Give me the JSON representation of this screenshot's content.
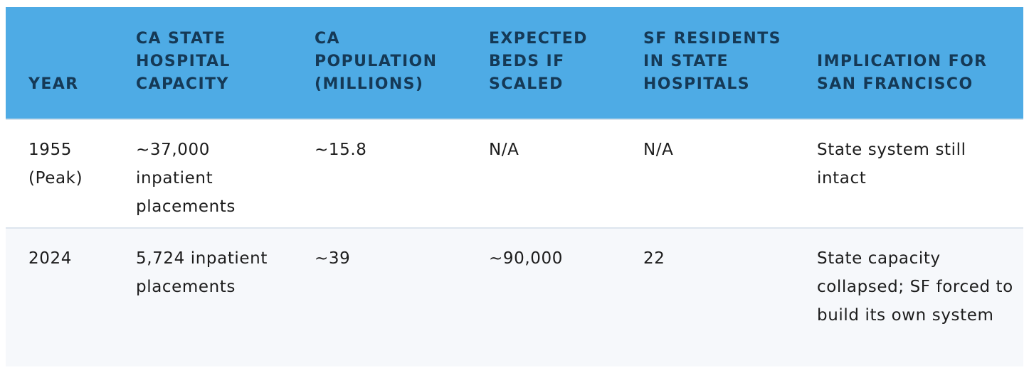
{
  "table": {
    "headers": [
      "YEAR",
      "CA STATE HOSPITAL CAPACITY",
      "CA POPULATION (MILLIONS)",
      "EXPECTED BEDS IF SCALED",
      "SF RESIDENTS IN STATE HOSPITALS",
      "IMPLICATION FOR SAN FRANCISCO"
    ],
    "rows": [
      [
        "1955 (Peak)",
        "~37,000 inpatient placements",
        "~15.8",
        "N/A",
        "N/A",
        "State system still intact"
      ],
      [
        "2024",
        "5,724 inpatient placements",
        "~39",
        "~90,000",
        "22",
        "State capacity collapsed; SF forced to build its own system"
      ]
    ]
  }
}
